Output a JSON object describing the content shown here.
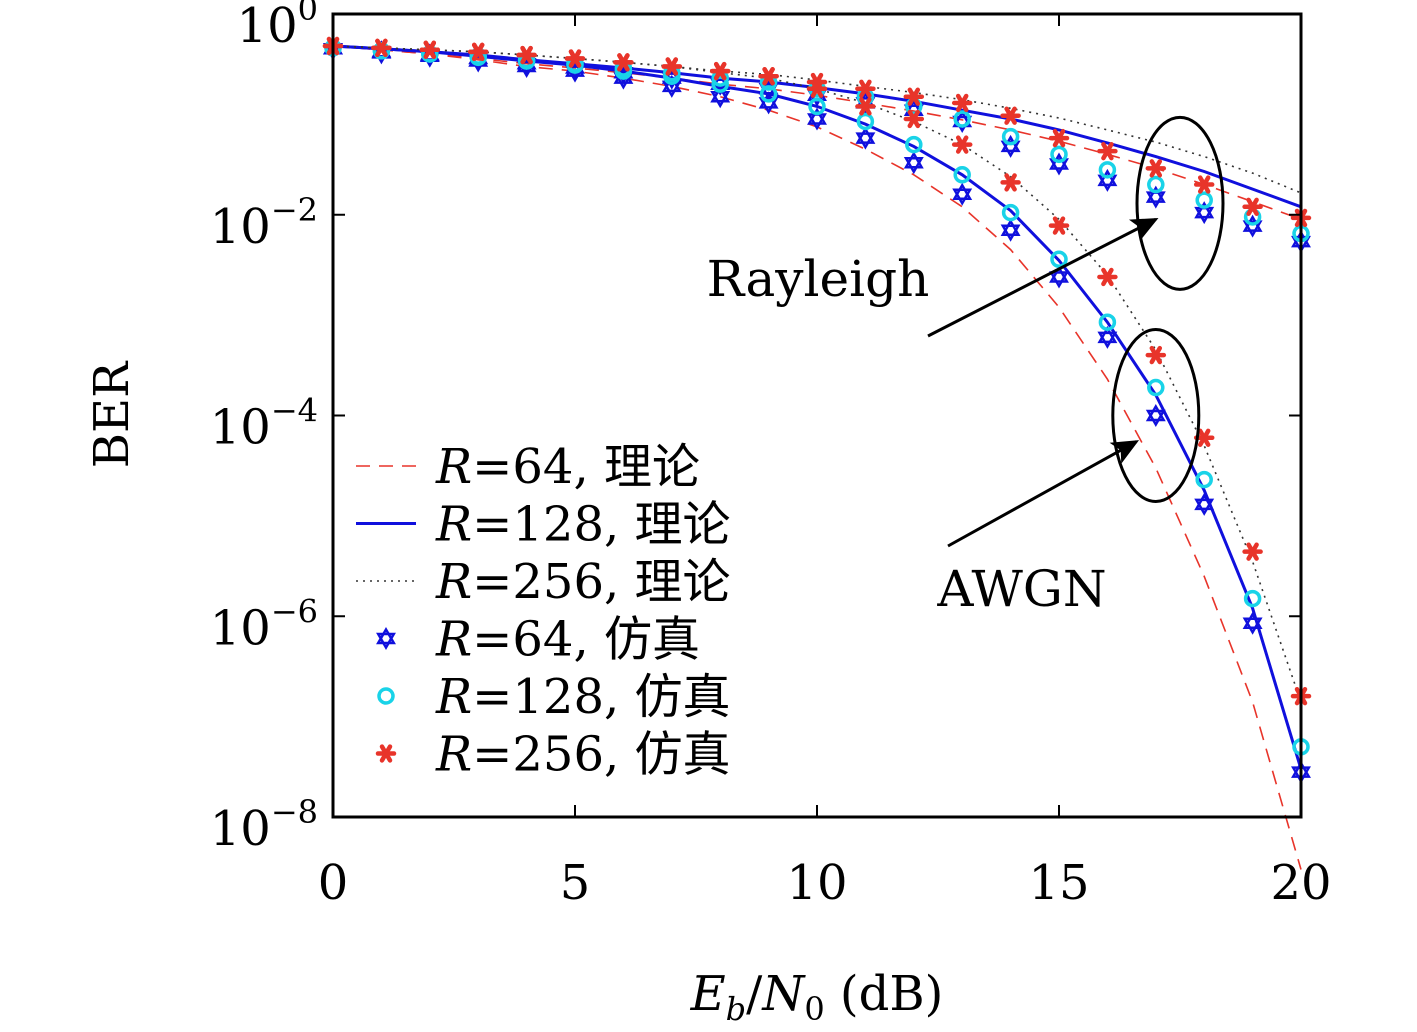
{
  "chart_data": {
    "type": "line",
    "title": "",
    "xlabel": "E_b/N_0 (dB)",
    "xlabel_parts": {
      "e": "E",
      "e_sub": "b",
      "slash": "/",
      "n": "N",
      "n_sub": "0",
      "unit": " (dB)"
    },
    "ylabel": "BER",
    "xlim": [
      0,
      20
    ],
    "ylim": [
      1e-08,
      1
    ],
    "yscale": "log",
    "grid": false,
    "legend_position": "lower-left",
    "xticks": [
      0,
      5,
      10,
      15,
      20
    ],
    "xtick_labels": [
      "0",
      "5",
      "10",
      "15",
      "20"
    ],
    "yticks": [
      1,
      0.01,
      0.0001,
      1e-06,
      1e-08
    ],
    "ytick_labels": [
      {
        "base": "10",
        "exp": "0"
      },
      {
        "base": "10",
        "exp": "−2"
      },
      {
        "base": "10",
        "exp": "−4"
      },
      {
        "base": "10",
        "exp": "−6"
      },
      {
        "base": "10",
        "exp": "−8"
      }
    ],
    "x": [
      0,
      1,
      2,
      3,
      4,
      5,
      6,
      7,
      8,
      9,
      10,
      11,
      12,
      13,
      14,
      15,
      16,
      17,
      18,
      19,
      20
    ],
    "series": [
      {
        "id": "t64",
        "legend": {
          "var": "R",
          "rest": "=64, 理论"
        },
        "style": "dashed",
        "color": "#e8342a",
        "groups": [
          {
            "channel": "Rayleigh",
            "y": [
              0.48,
              0.44,
              0.4,
              0.36,
              0.32,
              0.29,
              0.26,
              0.23,
              0.2,
              0.18,
              0.155,
              0.13,
              0.108,
              0.088,
              0.07,
              0.054,
              0.04,
              0.029,
              0.02,
              0.0135,
              0.009
            ]
          },
          {
            "channel": "AWGN",
            "y": [
              0.48,
              0.44,
              0.4,
              0.35,
              0.3,
              0.27,
              0.23,
              0.19,
              0.15,
              0.11,
              0.075,
              0.045,
              0.025,
              0.012,
              0.0045,
              0.0012,
              0.00023,
              3e-05,
              2.5e-06,
              1.4e-07,
              3e-09
            ]
          }
        ]
      },
      {
        "id": "t128",
        "legend": {
          "var": "R",
          "rest": "=128, 理论"
        },
        "style": "solid",
        "color": "#1010dd",
        "groups": [
          {
            "channel": "Rayleigh",
            "y": [
              0.48,
              0.45,
              0.42,
              0.39,
              0.35,
              0.32,
              0.29,
              0.26,
              0.23,
              0.21,
              0.185,
              0.16,
              0.135,
              0.11,
              0.09,
              0.07,
              0.052,
              0.038,
              0.027,
              0.018,
              0.012
            ]
          },
          {
            "channel": "AWGN",
            "y": [
              0.48,
              0.45,
              0.42,
              0.38,
              0.34,
              0.31,
              0.27,
              0.23,
              0.19,
              0.16,
              0.12,
              0.08,
              0.048,
              0.025,
              0.011,
              0.0035,
              0.00085,
              0.00016,
              1.8e-05,
              1.2e-06,
              3e-08
            ]
          }
        ]
      },
      {
        "id": "t256",
        "legend": {
          "var": "R",
          "rest": "=256, 理论"
        },
        "style": "dotted",
        "color": "#333333",
        "groups": [
          {
            "channel": "Rayleigh",
            "y": [
              0.48,
              0.46,
              0.44,
              0.42,
              0.39,
              0.36,
              0.33,
              0.3,
              0.27,
              0.25,
              0.22,
              0.19,
              0.165,
              0.14,
              0.115,
              0.092,
              0.07,
              0.053,
              0.038,
              0.026,
              0.0165
            ]
          },
          {
            "channel": "AWGN",
            "y": [
              0.48,
              0.46,
              0.44,
              0.42,
              0.39,
              0.36,
              0.33,
              0.3,
              0.26,
              0.23,
              0.18,
              0.13,
              0.085,
              0.05,
              0.024,
              0.009,
              0.0025,
              0.00045,
              5e-05,
              3.5e-06,
              1.4e-07
            ]
          }
        ]
      },
      {
        "id": "s64",
        "legend": {
          "var": "R",
          "rest": "=64, 仿真"
        },
        "style": "marker",
        "marker": "hexagram",
        "color": "#1010dd",
        "groups": [
          {
            "channel": "Rayleigh",
            "y": [
              0.45,
              0.42,
              0.39,
              0.36,
              0.32,
              0.29,
              0.26,
              0.23,
              0.2,
              0.18,
              0.155,
              0.13,
              0.11,
              0.085,
              0.048,
              0.032,
              0.022,
              0.015,
              0.0105,
              0.0077,
              0.0054
            ]
          },
          {
            "channel": "AWGN",
            "y": [
              0.45,
              0.41,
              0.38,
              0.34,
              0.3,
              0.27,
              0.23,
              0.19,
              0.15,
              0.13,
              0.09,
              0.058,
              0.033,
              0.016,
              0.007,
              0.0024,
              0.0006,
              0.0001,
              1.3e-05,
              8.5e-07,
              2.8e-08
            ]
          }
        ]
      },
      {
        "id": "s128",
        "legend": {
          "var": "R",
          "rest": "=128, 仿真"
        },
        "style": "marker",
        "marker": "circle",
        "color": "#19d3e8",
        "groups": [
          {
            "channel": "Rayleigh",
            "y": [
              0.46,
              0.43,
              0.4,
              0.38,
              0.35,
              0.32,
              0.29,
              0.26,
              0.23,
              0.21,
              0.18,
              0.15,
              0.12,
              0.09,
              0.06,
              0.04,
              0.028,
              0.02,
              0.014,
              0.0095,
              0.0065
            ]
          },
          {
            "channel": "AWGN",
            "y": [
              0.46,
              0.43,
              0.4,
              0.37,
              0.34,
              0.31,
              0.27,
              0.24,
              0.2,
              0.16,
              0.12,
              0.085,
              0.05,
              0.025,
              0.0105,
              0.0036,
              0.00085,
              0.00019,
              2.3e-05,
              1.5e-06,
              5e-08
            ]
          }
        ]
      },
      {
        "id": "s256",
        "legend": {
          "var": "R",
          "rest": "=256, 仿真"
        },
        "style": "marker",
        "marker": "asterisk",
        "color": "#e8342a",
        "groups": [
          {
            "channel": "Rayleigh",
            "y": [
              0.48,
              0.46,
              0.44,
              0.42,
              0.39,
              0.36,
              0.33,
              0.3,
              0.27,
              0.24,
              0.21,
              0.18,
              0.15,
              0.13,
              0.097,
              0.058,
              0.043,
              0.029,
              0.02,
              0.012,
              0.0093
            ]
          },
          {
            "channel": "AWGN",
            "y": [
              0.48,
              0.46,
              0.44,
              0.42,
              0.39,
              0.36,
              0.33,
              0.3,
              0.27,
              0.24,
              0.18,
              0.12,
              0.09,
              0.05,
              0.021,
              0.0078,
              0.0024,
              0.0004,
              6e-05,
              4.4e-06,
              1.6e-07
            ]
          }
        ]
      }
    ],
    "annotations": [
      {
        "id": "rayleigh",
        "text": "Rayleigh",
        "ellipse_center": [
          17.5,
          0.013
        ],
        "arrow_to": [
          17.0,
          0.009
        ]
      },
      {
        "id": "awgn",
        "text": "AWGN",
        "ellipse_center": [
          17.0,
          0.0001
        ],
        "arrow_to": [
          16.6,
          5.5e-05
        ]
      }
    ]
  }
}
